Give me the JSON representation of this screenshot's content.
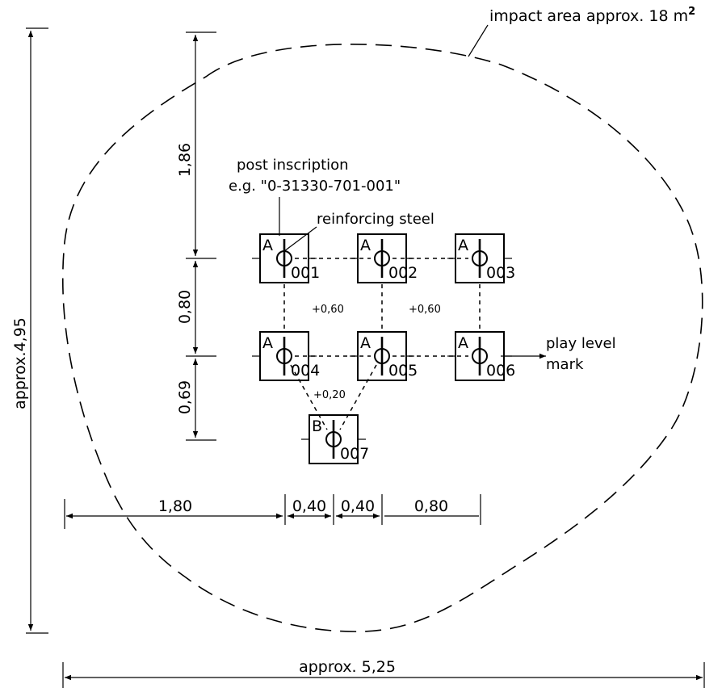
{
  "impact_area_label": "impact area approx. 18 m",
  "impact_area_sup": "2",
  "post_inscription_line1": "post inscription",
  "post_inscription_line2": "e.g. \"0-31330-701-001\"",
  "reinforcing_steel_label": "reinforcing steel",
  "play_level_line1": "play level",
  "play_level_line2": "mark",
  "posts": [
    {
      "type": "A",
      "number": "001"
    },
    {
      "type": "A",
      "number": "002"
    },
    {
      "type": "A",
      "number": "003"
    },
    {
      "type": "A",
      "number": "004"
    },
    {
      "type": "A",
      "number": "005"
    },
    {
      "type": "A",
      "number": "006"
    },
    {
      "type": "B",
      "number": "007"
    }
  ],
  "levels": {
    "top_left": "+0,60",
    "top_right": "+0,60",
    "bottom": "+0,20"
  },
  "dimensions": {
    "vertical": [
      "1,86",
      "0,80",
      "0,69"
    ],
    "horizontal": [
      "1,80",
      "0,40",
      "0,40",
      "0,80"
    ],
    "overall_height": "approx.4,95",
    "overall_width": "approx. 5,25"
  }
}
